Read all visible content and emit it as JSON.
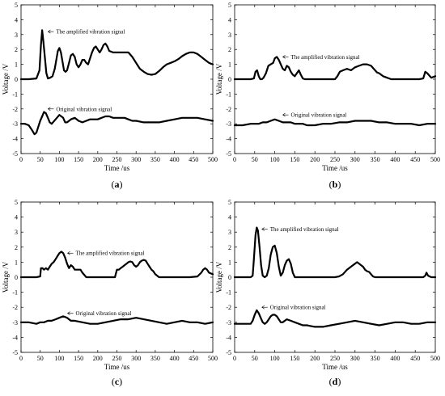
{
  "figure": {
    "background": "#ffffff",
    "line_color": "#000000"
  },
  "chart_data": [
    {
      "panel": "a",
      "panel_label": "(a)",
      "type": "line",
      "xlabel": "Time /us",
      "ylabel": "Voltage /V",
      "xlim": [
        0,
        500
      ],
      "ylim": [
        -5,
        5
      ],
      "xticks": [
        0,
        50,
        100,
        150,
        200,
        250,
        300,
        350,
        400,
        450,
        500
      ],
      "yticks": [
        -5,
        -4,
        -3,
        -2,
        -1,
        0,
        1,
        2,
        3,
        4,
        5
      ],
      "grid": false,
      "annotations": [
        {
          "text": "The amplified vibration signal",
          "x": 62,
          "y": 3.2
        },
        {
          "text": "Original vibration signal",
          "x": 62,
          "y": -2.0
        }
      ],
      "series": [
        {
          "x": [
            0,
            20,
            40,
            48,
            52,
            55,
            58,
            62,
            66,
            70,
            76,
            82,
            88,
            92,
            96,
            100,
            104,
            108,
            112,
            116,
            120,
            125,
            130,
            135,
            140,
            145,
            150,
            155,
            160,
            165,
            170,
            175,
            180,
            185,
            190,
            195,
            200,
            205,
            210,
            215,
            220,
            225,
            230,
            240,
            250,
            260,
            270,
            280,
            290,
            300,
            310,
            320,
            330,
            340,
            350,
            360,
            370,
            380,
            390,
            400,
            410,
            420,
            430,
            440,
            450,
            460,
            470,
            480,
            490,
            500
          ],
          "y": [
            0,
            0,
            0.05,
            0.6,
            2.3,
            3.3,
            2.6,
            1.5,
            0.4,
            0.05,
            0.1,
            0.2,
            0.7,
            1.3,
            1.9,
            2.1,
            1.8,
            1.2,
            0.6,
            0.5,
            0.6,
            1.1,
            1.6,
            1.7,
            1.5,
            1.0,
            0.8,
            1.0,
            1.3,
            1.3,
            1.1,
            1.0,
            1.4,
            1.8,
            2.1,
            2.2,
            2.0,
            1.8,
            2.0,
            2.3,
            2.4,
            2.2,
            1.9,
            1.8,
            1.8,
            1.8,
            1.8,
            1.8,
            1.5,
            1.1,
            0.7,
            0.5,
            0.35,
            0.3,
            0.35,
            0.55,
            0.8,
            1.0,
            1.1,
            1.2,
            1.35,
            1.55,
            1.7,
            1.8,
            1.8,
            1.7,
            1.5,
            1.3,
            1.1,
            1.0
          ]
        },
        {
          "x": [
            0,
            10,
            20,
            28,
            35,
            40,
            45,
            50,
            55,
            60,
            65,
            70,
            75,
            80,
            90,
            100,
            110,
            115,
            120,
            130,
            140,
            150,
            160,
            170,
            180,
            190,
            200,
            210,
            220,
            230,
            240,
            250,
            260,
            270,
            280,
            290,
            300,
            320,
            340,
            360,
            380,
            400,
            420,
            440,
            460,
            480,
            500
          ],
          "y": [
            -3.0,
            -3.0,
            -3.1,
            -3.4,
            -3.7,
            -3.6,
            -3.2,
            -2.8,
            -2.5,
            -2.2,
            -2.3,
            -2.6,
            -2.9,
            -3.0,
            -2.7,
            -2.4,
            -2.6,
            -2.9,
            -2.9,
            -2.7,
            -2.6,
            -2.8,
            -2.9,
            -2.8,
            -2.7,
            -2.7,
            -2.7,
            -2.6,
            -2.5,
            -2.5,
            -2.6,
            -2.6,
            -2.6,
            -2.6,
            -2.7,
            -2.8,
            -2.8,
            -2.9,
            -2.9,
            -2.9,
            -2.8,
            -2.7,
            -2.6,
            -2.6,
            -2.6,
            -2.7,
            -2.8
          ]
        }
      ]
    },
    {
      "panel": "b",
      "panel_label": "(b)",
      "type": "line",
      "xlabel": "Time /us",
      "ylabel": "Voltage /V",
      "xlim": [
        0,
        500
      ],
      "ylim": [
        -5,
        5
      ],
      "xticks": [
        0,
        50,
        100,
        150,
        200,
        250,
        300,
        350,
        400,
        450,
        500
      ],
      "yticks": [
        -5,
        -4,
        -3,
        -2,
        -1,
        0,
        1,
        2,
        3,
        4,
        5
      ],
      "grid": false,
      "annotations": [
        {
          "text": "The amplified vibration signal",
          "x": 112,
          "y": 1.5
        },
        {
          "text": "Original vibration signal",
          "x": 112,
          "y": -2.4
        }
      ],
      "series": [
        {
          "x": [
            0,
            20,
            40,
            48,
            52,
            56,
            60,
            64,
            68,
            72,
            78,
            84,
            90,
            96,
            100,
            105,
            110,
            115,
            120,
            125,
            130,
            135,
            140,
            145,
            150,
            155,
            160,
            165,
            170,
            175,
            180,
            200,
            220,
            240,
            250,
            256,
            262,
            270,
            280,
            290,
            300,
            310,
            320,
            330,
            340,
            350,
            355,
            360,
            370,
            380,
            385,
            390,
            400,
            420,
            440,
            460,
            470,
            475,
            480,
            490,
            500
          ],
          "y": [
            0,
            0,
            0,
            0.05,
            0.5,
            0.6,
            0.2,
            0.0,
            0.0,
            0.1,
            0.4,
            0.9,
            1.0,
            1.1,
            1.4,
            1.5,
            1.3,
            1.0,
            0.7,
            0.6,
            0.9,
            0.8,
            0.5,
            0.3,
            0.2,
            0.4,
            0.6,
            0.3,
            0.05,
            0.0,
            0.0,
            0.0,
            0.0,
            0.0,
            0.0,
            0.2,
            0.5,
            0.6,
            0.7,
            0.6,
            0.8,
            0.9,
            1.0,
            1.0,
            0.9,
            0.6,
            0.45,
            0.4,
            0.2,
            0.1,
            0.05,
            0.0,
            0.0,
            0.0,
            0.0,
            0.0,
            0.05,
            0.5,
            0.4,
            0.1,
            0.2
          ]
        },
        {
          "x": [
            0,
            20,
            40,
            50,
            60,
            70,
            80,
            90,
            100,
            110,
            120,
            130,
            140,
            150,
            160,
            170,
            180,
            200,
            220,
            240,
            260,
            280,
            300,
            320,
            340,
            360,
            380,
            400,
            420,
            440,
            460,
            480,
            500
          ],
          "y": [
            -3.1,
            -3.1,
            -3.0,
            -3.0,
            -3.0,
            -2.9,
            -2.9,
            -2.8,
            -2.7,
            -2.8,
            -2.9,
            -2.9,
            -2.9,
            -3.0,
            -3.0,
            -3.0,
            -3.1,
            -3.1,
            -3.0,
            -3.0,
            -2.9,
            -2.9,
            -2.8,
            -2.8,
            -2.8,
            -2.9,
            -2.9,
            -3.0,
            -3.0,
            -3.0,
            -3.1,
            -3.0,
            -3.0
          ]
        }
      ]
    },
    {
      "panel": "c",
      "panel_label": "(c)",
      "type": "line",
      "xlabel": "Time /us",
      "ylabel": "Voltage /V",
      "xlim": [
        0,
        500
      ],
      "ylim": [
        -5,
        5
      ],
      "xticks": [
        0,
        50,
        100,
        150,
        200,
        250,
        300,
        350,
        400,
        450,
        500
      ],
      "yticks": [
        -5,
        -4,
        -3,
        -2,
        -1,
        0,
        1,
        2,
        3,
        4,
        5
      ],
      "grid": false,
      "annotations": [
        {
          "text": "The amplified vibration signal",
          "x": 113,
          "y": 1.6
        },
        {
          "text": "Original vibration signal",
          "x": 113,
          "y": -2.4
        }
      ],
      "series": [
        {
          "x": [
            0,
            20,
            40,
            50,
            52,
            56,
            60,
            65,
            70,
            75,
            80,
            85,
            90,
            95,
            100,
            105,
            110,
            115,
            120,
            125,
            130,
            135,
            140,
            150,
            155,
            160,
            170,
            200,
            230,
            245,
            250,
            255,
            260,
            265,
            270,
            275,
            280,
            285,
            290,
            295,
            300,
            305,
            310,
            315,
            320,
            325,
            330,
            335,
            340,
            345,
            350,
            360,
            370,
            400,
            440,
            460,
            470,
            475,
            480,
            485,
            490,
            500
          ],
          "y": [
            0,
            0,
            0,
            0.05,
            0.6,
            0.6,
            0.5,
            0.6,
            0.5,
            0.7,
            0.9,
            1.0,
            1.2,
            1.4,
            1.6,
            1.7,
            1.6,
            1.3,
            0.9,
            0.6,
            0.8,
            0.7,
            0.5,
            0.5,
            0.5,
            0.3,
            0.0,
            0.0,
            0.0,
            0.0,
            0.5,
            0.5,
            0.6,
            0.7,
            0.8,
            0.9,
            1.0,
            1.05,
            1.0,
            0.8,
            0.7,
            0.8,
            1.0,
            1.1,
            1.15,
            1.1,
            0.9,
            0.7,
            0.5,
            0.4,
            0.2,
            0.0,
            0.0,
            0.0,
            0.0,
            0.05,
            0.3,
            0.5,
            0.6,
            0.5,
            0.3,
            0.2
          ]
        },
        {
          "x": [
            0,
            20,
            40,
            50,
            60,
            70,
            80,
            90,
            100,
            110,
            120,
            130,
            140,
            160,
            180,
            200,
            220,
            240,
            260,
            280,
            300,
            320,
            340,
            360,
            380,
            400,
            420,
            440,
            460,
            480,
            500
          ],
          "y": [
            -3.0,
            -3.0,
            -3.1,
            -3.0,
            -3.0,
            -2.9,
            -2.9,
            -2.8,
            -2.7,
            -2.6,
            -2.7,
            -2.9,
            -2.9,
            -3.0,
            -3.1,
            -3.1,
            -3.0,
            -2.9,
            -2.8,
            -2.8,
            -2.7,
            -2.8,
            -2.9,
            -3.0,
            -3.1,
            -3.0,
            -2.9,
            -3.0,
            -3.0,
            -3.1,
            -3.0
          ]
        }
      ]
    },
    {
      "panel": "d",
      "panel_label": "(d)",
      "type": "line",
      "xlabel": "Time /us",
      "ylabel": "Voltage /V",
      "xlim": [
        0,
        500
      ],
      "ylim": [
        -5,
        5
      ],
      "xticks": [
        0,
        50,
        100,
        150,
        200,
        250,
        300,
        350,
        400,
        450,
        500
      ],
      "yticks": [
        -5,
        -4,
        -3,
        -2,
        -1,
        0,
        1,
        2,
        3,
        4,
        5
      ],
      "grid": false,
      "annotations": [
        {
          "text": "The amplified vibration signal",
          "x": 60,
          "y": 3.2
        },
        {
          "text": "Original vibration signal",
          "x": 60,
          "y": -2.0
        }
      ],
      "series": [
        {
          "x": [
            0,
            20,
            40,
            45,
            48,
            52,
            55,
            58,
            62,
            66,
            70,
            75,
            80,
            85,
            90,
            95,
            100,
            105,
            110,
            115,
            120,
            125,
            130,
            135,
            140,
            145,
            150,
            155,
            160,
            200,
            250,
            260,
            270,
            280,
            290,
            295,
            300,
            305,
            310,
            315,
            320,
            325,
            330,
            335,
            340,
            345,
            350,
            400,
            470,
            475,
            478,
            482,
            490,
            500
          ],
          "y": [
            0,
            0,
            0,
            0.1,
            1.2,
            2.8,
            3.3,
            3.1,
            2.0,
            0.8,
            0.1,
            0.0,
            0.1,
            0.6,
            1.5,
            2.0,
            2.1,
            1.6,
            0.7,
            0.1,
            0.3,
            0.8,
            1.1,
            1.2,
            0.9,
            0.3,
            0.0,
            0.0,
            0.0,
            0.0,
            0.0,
            0.05,
            0.2,
            0.5,
            0.7,
            0.8,
            0.9,
            1.0,
            0.9,
            0.8,
            0.7,
            0.5,
            0.4,
            0.35,
            0.2,
            0.05,
            0.0,
            0.0,
            0.0,
            0.1,
            0.3,
            0.1,
            0.0,
            0.0
          ]
        },
        {
          "x": [
            0,
            20,
            40,
            45,
            50,
            55,
            60,
            65,
            70,
            75,
            80,
            85,
            90,
            95,
            100,
            105,
            110,
            115,
            120,
            125,
            130,
            140,
            150,
            160,
            170,
            180,
            200,
            220,
            240,
            260,
            280,
            300,
            320,
            340,
            360,
            380,
            400,
            420,
            440,
            460,
            480,
            500
          ],
          "y": [
            -3.1,
            -3.1,
            -3.1,
            -2.9,
            -2.5,
            -2.2,
            -2.4,
            -2.7,
            -3.0,
            -3.1,
            -3.0,
            -2.8,
            -2.6,
            -2.5,
            -2.5,
            -2.6,
            -2.8,
            -3.0,
            -3.0,
            -2.9,
            -2.8,
            -2.9,
            -3.0,
            -3.1,
            -3.2,
            -3.2,
            -3.3,
            -3.3,
            -3.2,
            -3.1,
            -3.0,
            -2.9,
            -3.0,
            -3.1,
            -3.2,
            -3.1,
            -3.0,
            -3.0,
            -3.1,
            -3.1,
            -3.0,
            -3.0
          ]
        }
      ]
    }
  ]
}
